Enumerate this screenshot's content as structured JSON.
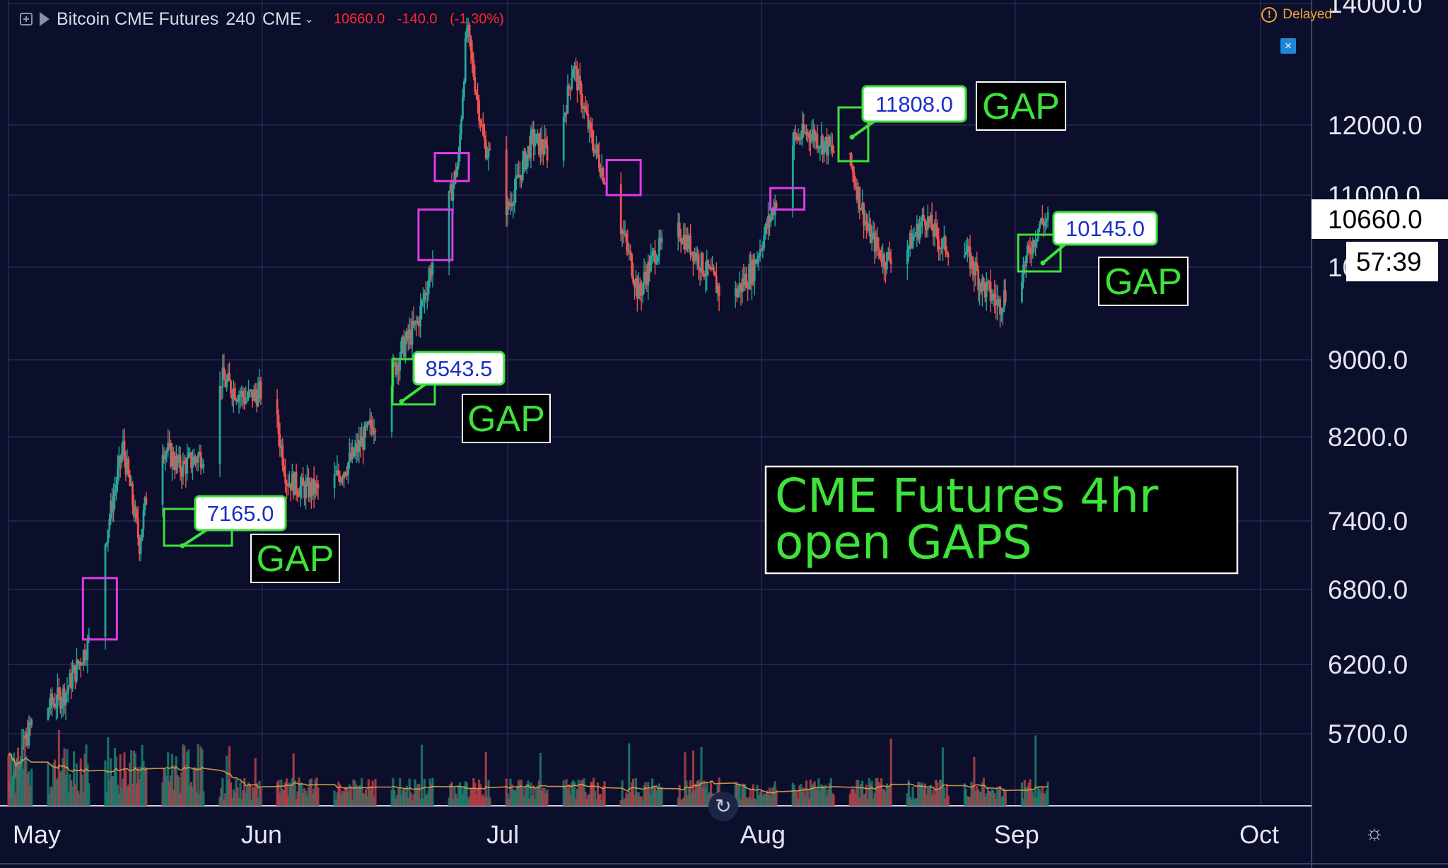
{
  "header": {
    "symbol": "Bitcoin CME Futures",
    "interval": "240",
    "exchange": "CME",
    "last": "10660.0",
    "change": "-140.0",
    "change_pct": "(-1.30%)",
    "icons": [
      "add-symbol-icon",
      "flag-icon",
      "chevron-down-icon"
    ]
  },
  "status": {
    "delayed_label": "Delayed",
    "icon": "warning-icon"
  },
  "price_label": {
    "value": "10660.0",
    "countdown": "57:39",
    "color": "#ffffff"
  },
  "chart_data": {
    "type": "candlestick",
    "title": "",
    "xlabel": "",
    "ylabel": "",
    "x_ticks": [
      "May",
      "Jun",
      "Jul",
      "Aug",
      "Sep",
      "Oct"
    ],
    "y_ticks": [
      5700,
      6200,
      6800,
      7400,
      8200,
      9000,
      10000,
      11000,
      12000,
      14000
    ],
    "y_tick_labels": [
      "5700.0",
      "6200.0",
      "6800.0",
      "7400.0",
      "8200.0",
      "9000.0",
      "10000.0",
      "11000.0",
      "12000.0",
      "14000.0"
    ],
    "y_scale": "log",
    "ylim": [
      5200,
      14300
    ],
    "grid": true,
    "up_color": "#26a69a",
    "down_color": "#ef5350",
    "price_path": [
      [
        "2019-05-01",
        5300
      ],
      [
        "2019-05-04",
        5800
      ],
      [
        "2019-05-08",
        6000
      ],
      [
        "2019-05-11",
        6400
      ],
      [
        "2019-05-13",
        7300
      ],
      [
        "2019-05-15",
        8100
      ],
      [
        "2019-05-17",
        7200
      ],
      [
        "2019-05-19",
        8200
      ],
      [
        "2019-05-22",
        7900
      ],
      [
        "2019-05-26",
        8100
      ],
      [
        "2019-05-27",
        8800
      ],
      [
        "2019-05-30",
        8600
      ],
      [
        "2019-06-02",
        8700
      ],
      [
        "2019-06-04",
        7800
      ],
      [
        "2019-06-06",
        7700
      ],
      [
        "2019-06-09",
        7700
      ],
      [
        "2019-06-12",
        8000
      ],
      [
        "2019-06-15",
        8400
      ],
      [
        "2019-06-18",
        9100
      ],
      [
        "2019-06-20",
        9400
      ],
      [
        "2019-06-23",
        10500
      ],
      [
        "2019-06-25",
        11500
      ],
      [
        "2019-06-26",
        13600
      ],
      [
        "2019-06-28",
        11800
      ],
      [
        "2019-07-01",
        10800
      ],
      [
        "2019-07-04",
        11800
      ],
      [
        "2019-07-07",
        11500
      ],
      [
        "2019-07-09",
        13000
      ],
      [
        "2019-07-11",
        11900
      ],
      [
        "2019-07-13",
        11200
      ],
      [
        "2019-07-15",
        10500
      ],
      [
        "2019-07-17",
        9700
      ],
      [
        "2019-07-19",
        10200
      ],
      [
        "2019-07-22",
        10500
      ],
      [
        "2019-07-25",
        10000
      ],
      [
        "2019-07-28",
        9600
      ],
      [
        "2019-07-31",
        10000
      ],
      [
        "2019-08-03",
        11000
      ],
      [
        "2019-08-05",
        11800
      ],
      [
        "2019-08-07",
        11900
      ],
      [
        "2019-08-10",
        11600
      ],
      [
        "2019-08-12",
        11400
      ],
      [
        "2019-08-14",
        10500
      ],
      [
        "2019-08-16",
        10100
      ],
      [
        "2019-08-19",
        10300
      ],
      [
        "2019-08-21",
        10700
      ],
      [
        "2019-08-23",
        10300
      ],
      [
        "2019-08-26",
        10200
      ],
      [
        "2019-08-28",
        9800
      ],
      [
        "2019-08-30",
        9600
      ],
      [
        "2019-09-02",
        10000
      ],
      [
        "2019-09-04",
        10600
      ],
      [
        "2019-09-05",
        10660
      ]
    ],
    "gaps_open": [
      {
        "label": "GAP",
        "price": "7165.0",
        "date": "2019-05-17"
      },
      {
        "label": "GAP",
        "price": "8543.5",
        "date": "2019-06-15"
      },
      {
        "label": "GAP",
        "price": "11808.0",
        "date": "2019-08-09"
      },
      {
        "label": "GAP",
        "price": "10145.0",
        "date": "2019-09-03"
      }
    ],
    "gaps_filled_color": "#e23be6",
    "gaps_open_color": "#3ee23a",
    "annotation": "CME Futures 4hr open GAPS",
    "volume_ma_color": "#e0a04a"
  },
  "controls": {
    "settings": "gear-icon",
    "reset": "reset-icon"
  }
}
